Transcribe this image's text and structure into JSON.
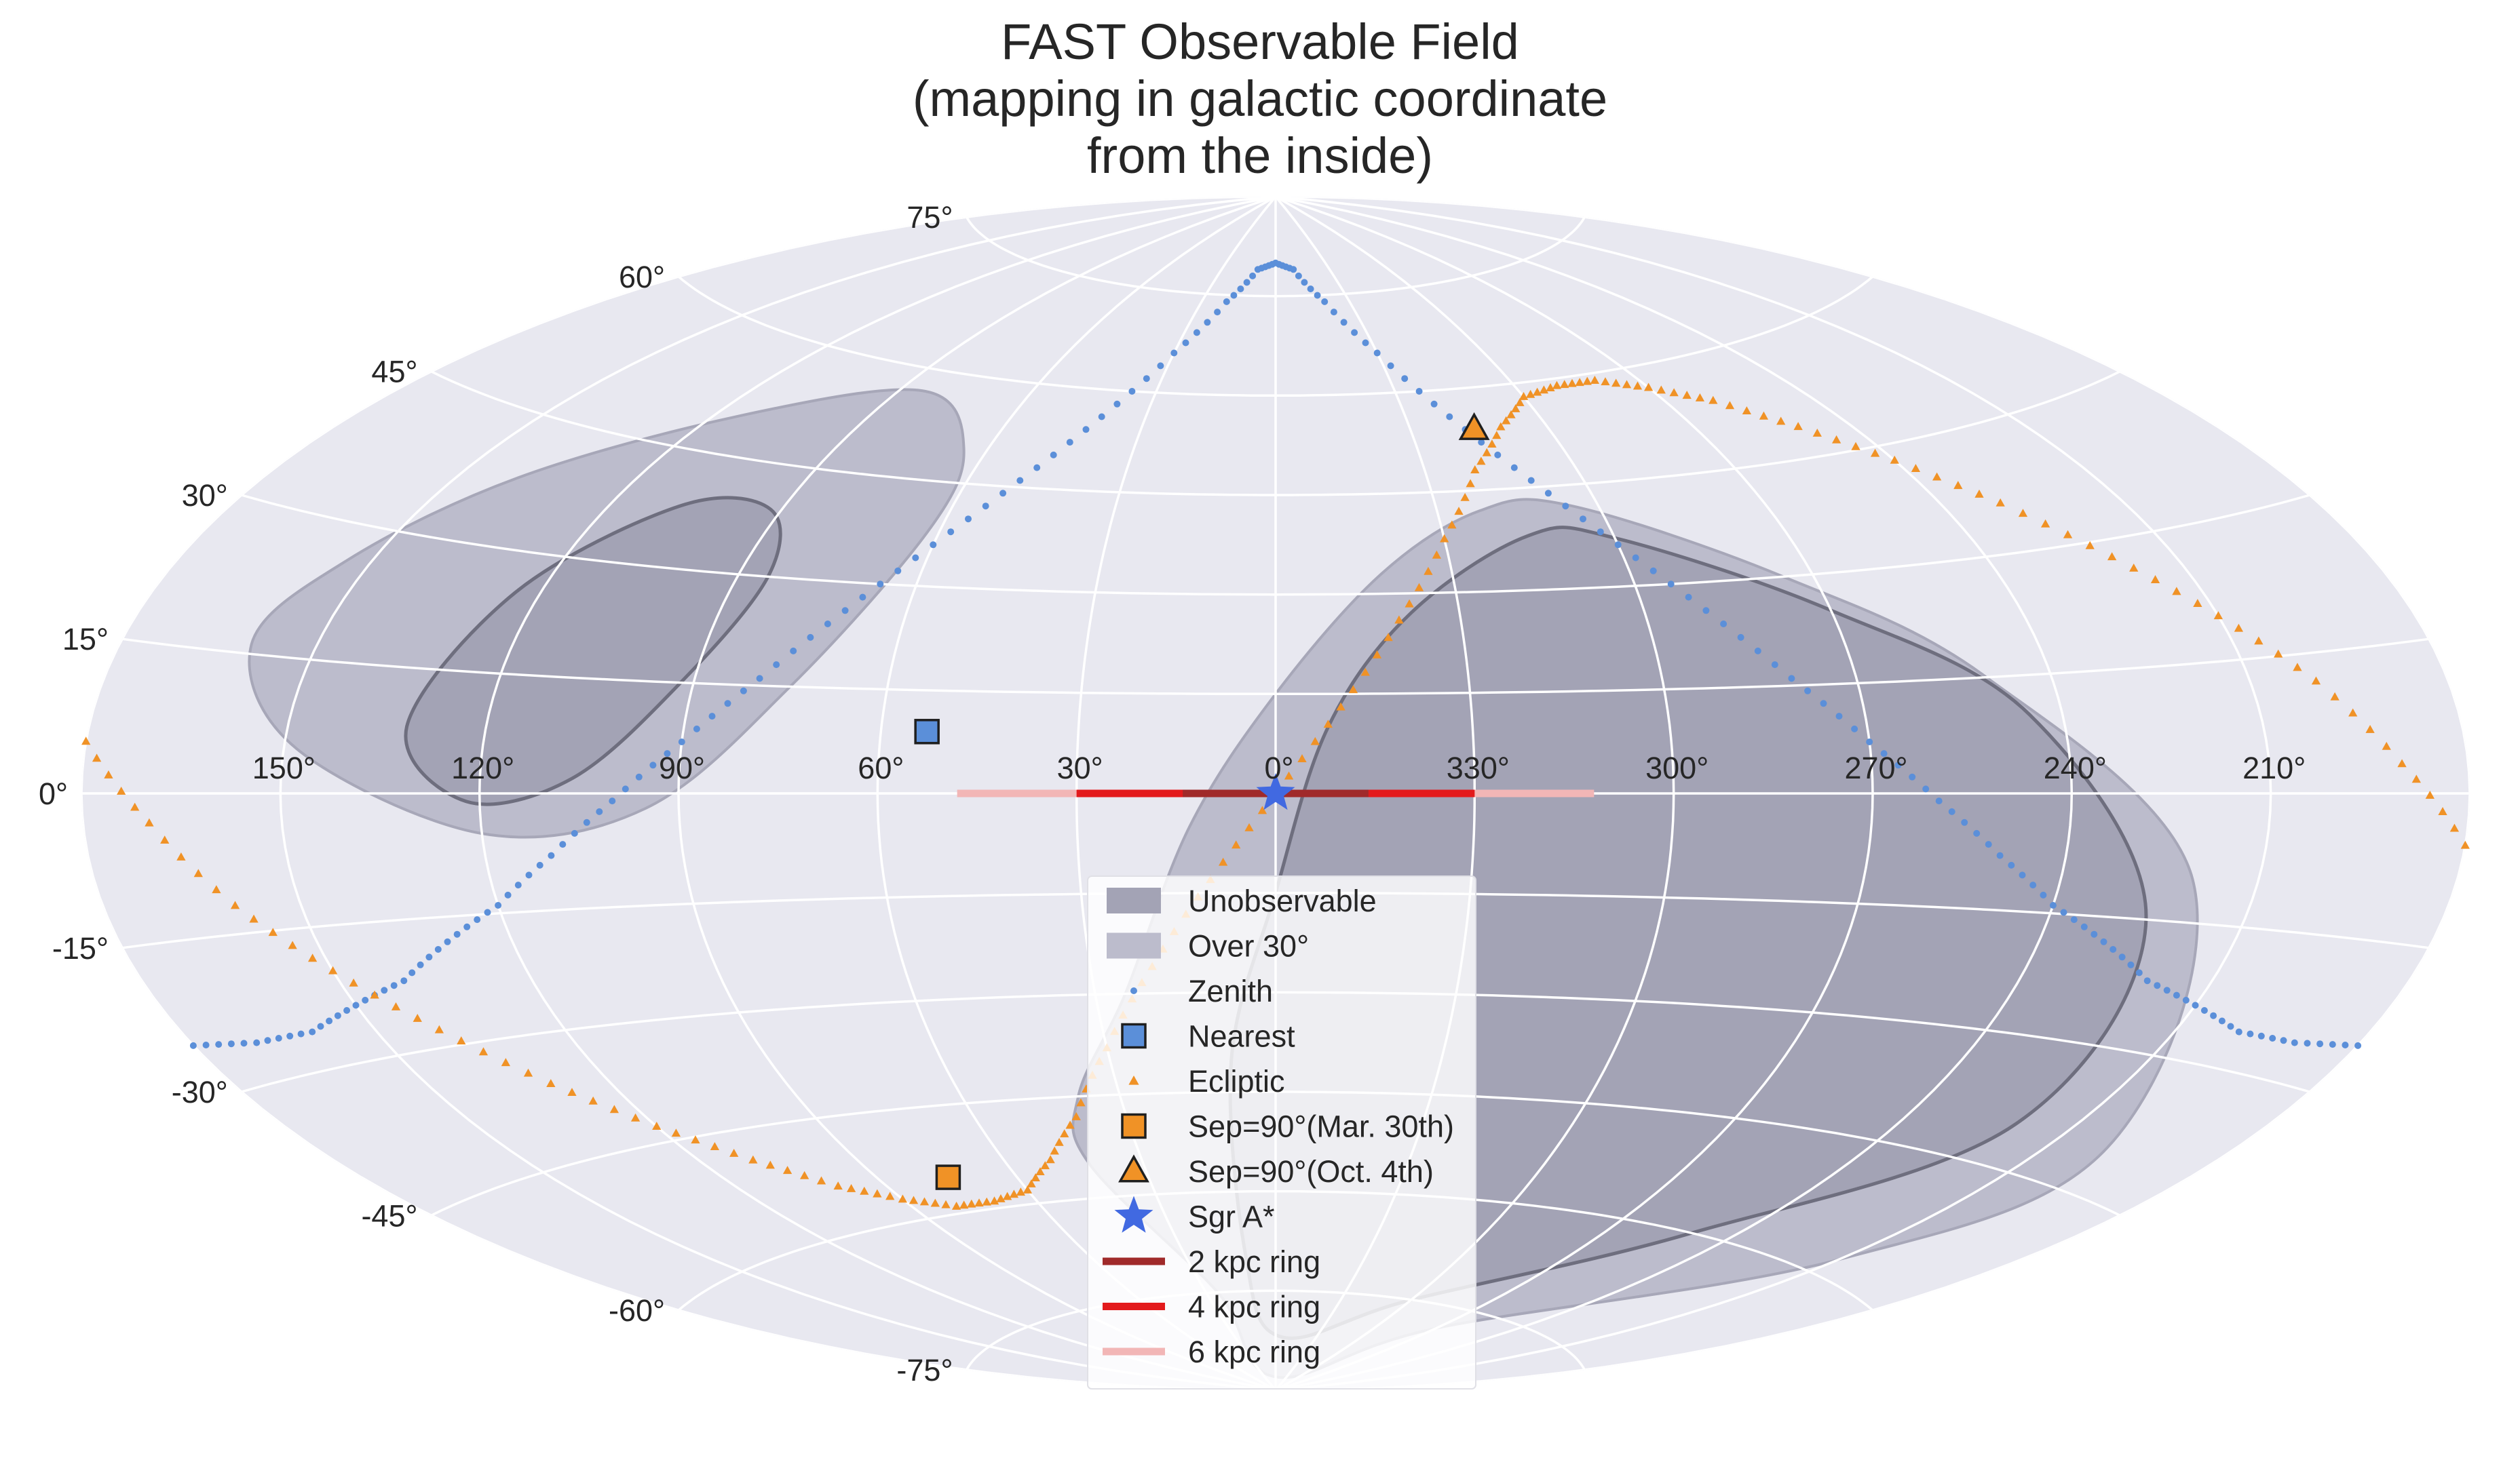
{
  "chart_data": {
    "type": "scatter",
    "projection": "aitoff",
    "title": [
      "FAST Observable Field",
      "(mapping in galactic coordinate",
      "from the inside)"
    ],
    "xlabel": "",
    "ylabel": "",
    "longitude_ticks": [
      {
        "value": 150,
        "label": "150°"
      },
      {
        "value": 120,
        "label": "120°"
      },
      {
        "value": 90,
        "label": "90°"
      },
      {
        "value": 60,
        "label": "60°"
      },
      {
        "value": 30,
        "label": "30°"
      },
      {
        "value": 0,
        "label": "0°"
      },
      {
        "value": -30,
        "label": "330°"
      },
      {
        "value": -60,
        "label": "300°"
      },
      {
        "value": -90,
        "label": "270°"
      },
      {
        "value": -120,
        "label": "240°"
      },
      {
        "value": -150,
        "label": "210°"
      }
    ],
    "latitude_ticks": [
      {
        "value": 75,
        "label": "75°"
      },
      {
        "value": 60,
        "label": "60°"
      },
      {
        "value": 45,
        "label": "45°"
      },
      {
        "value": 30,
        "label": "30°"
      },
      {
        "value": 15,
        "label": "15°"
      },
      {
        "value": 0,
        "label": "0°"
      },
      {
        "value": -15,
        "label": "-15°"
      },
      {
        "value": -30,
        "label": "-30°"
      },
      {
        "value": -45,
        "label": "-45°"
      },
      {
        "value": -60,
        "label": "-60°"
      },
      {
        "value": -75,
        "label": "-75°"
      }
    ],
    "regions": [
      {
        "name": "Over 30°",
        "color": "#bcbccc",
        "boundary": [
          [
            154,
            26
          ],
          [
            160,
            16
          ],
          [
            148,
            5
          ],
          [
            120,
            -5
          ],
          [
            95,
            -2
          ],
          [
            75,
            15
          ],
          [
            62,
            38
          ],
          [
            65,
            50
          ],
          [
            85,
            57
          ],
          [
            115,
            50
          ],
          [
            140,
            38
          ]
        ]
      },
      {
        "name": "Unobservable",
        "color": "#a3a3b5",
        "boundary": [
          [
            132,
            8
          ],
          [
            122,
            -1
          ],
          [
            106,
            2
          ],
          [
            92,
            15
          ],
          [
            85,
            30
          ],
          [
            92,
            39
          ],
          [
            108,
            38
          ],
          [
            124,
            25
          ]
        ]
      },
      {
        "name": "Over 30°",
        "color": "#bcbccc",
        "boundary": [
          [
            -55,
            42
          ],
          [
            -85,
            30
          ],
          [
            -110,
            15
          ],
          [
            -140,
            -10
          ],
          [
            -160,
            -40
          ],
          [
            -150,
            -58
          ],
          [
            -90,
            -78
          ],
          [
            0,
            -88
          ],
          [
            25,
            -75
          ],
          [
            42,
            -55
          ],
          [
            38,
            -45
          ],
          [
            25,
            -30
          ],
          [
            13,
            -5
          ],
          [
            0,
            15
          ],
          [
            -18,
            33
          ],
          [
            -38,
            42
          ]
        ]
      },
      {
        "name": "Unobservable",
        "color": "#a3a3b5",
        "boundary": [
          [
            -60,
            37
          ],
          [
            -90,
            25
          ],
          [
            -115,
            10
          ],
          [
            -135,
            -15
          ],
          [
            -140,
            -40
          ],
          [
            -110,
            -60
          ],
          [
            -60,
            -75
          ],
          [
            -5,
            -82
          ],
          [
            10,
            -70
          ],
          [
            8,
            -40
          ],
          [
            0,
            -15
          ],
          [
            -8,
            10
          ],
          [
            -22,
            27
          ],
          [
            -45,
            38
          ]
        ]
      }
    ],
    "series": [
      {
        "name": "Zenith",
        "marker": "dot",
        "color": "#5b8fd9",
        "points": [
          [
            -180,
            -25
          ],
          [
            -170,
            -26
          ],
          [
            -160,
            -26
          ],
          [
            -150,
            -24
          ],
          [
            -140,
            -22
          ],
          [
            -130,
            -18
          ],
          [
            -120,
            -14
          ],
          [
            -110,
            -8
          ],
          [
            -100,
            -1
          ],
          [
            -90,
            7
          ],
          [
            -80,
            16
          ],
          [
            -70,
            26
          ],
          [
            -60,
            36
          ],
          [
            -50,
            46
          ],
          [
            -40,
            56
          ],
          [
            -30,
            66
          ],
          [
            -20,
            74
          ],
          [
            -10,
            79
          ],
          [
            0,
            80
          ],
          [
            10,
            79
          ],
          [
            20,
            74
          ],
          [
            30,
            66
          ],
          [
            40,
            56
          ],
          [
            50,
            46
          ],
          [
            60,
            36
          ],
          [
            70,
            26
          ],
          [
            80,
            16
          ],
          [
            90,
            7
          ],
          [
            100,
            -1
          ],
          [
            110,
            -8
          ],
          [
            120,
            -14
          ],
          [
            130,
            -18
          ],
          [
            140,
            -22
          ],
          [
            150,
            -24
          ],
          [
            160,
            -26
          ],
          [
            170,
            -26
          ],
          [
            180,
            -25
          ]
        ]
      },
      {
        "name": "Ecliptic",
        "marker": "triangle",
        "color": "#f09226",
        "points": [
          [
            -180,
            -5
          ],
          [
            -170,
            3
          ],
          [
            -160,
            12
          ],
          [
            -150,
            20
          ],
          [
            -140,
            28
          ],
          [
            -130,
            36
          ],
          [
            -120,
            43
          ],
          [
            -110,
            49
          ],
          [
            -100,
            54
          ],
          [
            -90,
            57
          ],
          [
            -80,
            59
          ],
          [
            -70,
            59
          ],
          [
            -60,
            58
          ],
          [
            -50,
            54
          ],
          [
            -40,
            48
          ],
          [
            -30,
            38
          ],
          [
            -20,
            26
          ],
          [
            -10,
            13
          ],
          [
            0,
            0
          ],
          [
            10,
            -13
          ],
          [
            20,
            -26
          ],
          [
            30,
            -38
          ],
          [
            40,
            -48
          ],
          [
            50,
            -54
          ],
          [
            60,
            -58
          ],
          [
            70,
            -59
          ],
          [
            80,
            -59
          ],
          [
            90,
            -57
          ],
          [
            100,
            -54
          ],
          [
            110,
            -49
          ],
          [
            120,
            -43
          ],
          [
            130,
            -36
          ],
          [
            140,
            -28
          ],
          [
            150,
            -20
          ],
          [
            160,
            -12
          ],
          [
            170,
            -3
          ],
          [
            180,
            5
          ]
        ]
      },
      {
        "name": "Nearest",
        "marker": "square",
        "color": "#5b8fd9",
        "points": [
          [
            53,
            9
          ]
        ]
      },
      {
        "name": "Sep=90°(Mar. 30th)",
        "marker": "square",
        "color": "#f09226",
        "points": [
          [
            75,
            -55
          ]
        ]
      },
      {
        "name": "Sep=90°(Oct. 4th)",
        "marker": "triangle",
        "color": "#f09226",
        "points": [
          [
            -44,
            54
          ]
        ]
      },
      {
        "name": "Sgr A*",
        "marker": "star",
        "color": "#4169e1",
        "points": [
          [
            0,
            0
          ]
        ]
      }
    ],
    "rings": [
      {
        "name": "2 kpc ring",
        "color": "#a02a2a",
        "lon_range": [
          -14,
          14
        ]
      },
      {
        "name": "4 kpc ring",
        "color": "#e31a1c",
        "lon_range": [
          -30,
          30
        ]
      },
      {
        "name": "6 kpc ring",
        "color": "#f2b6b6",
        "lon_range": [
          -48,
          48
        ]
      }
    ],
    "legend": {
      "placement": "lower-center",
      "entries": [
        {
          "label": "Unobservable",
          "kind": "patch",
          "color": "#a3a3b5"
        },
        {
          "label": "Over 30°",
          "kind": "patch",
          "color": "#bcbccc"
        },
        {
          "label": "Zenith",
          "kind": "dot",
          "color": "#5b8fd9"
        },
        {
          "label": "Nearest",
          "kind": "square",
          "color": "#5b8fd9"
        },
        {
          "label": "Ecliptic",
          "kind": "small-triangle",
          "color": "#f09226"
        },
        {
          "label": "Sep=90°(Mar. 30th)",
          "kind": "square",
          "color": "#f09226"
        },
        {
          "label": "Sep=90°(Oct. 4th)",
          "kind": "triangle",
          "color": "#f09226"
        },
        {
          "label": "Sgr A*",
          "kind": "star",
          "color": "#4169e1"
        },
        {
          "label": "2 kpc ring",
          "kind": "line",
          "color": "#a02a2a"
        },
        {
          "label": "4 kpc ring",
          "kind": "line",
          "color": "#e31a1c"
        },
        {
          "label": "6 kpc ring",
          "kind": "line",
          "color": "#f2b6b6"
        }
      ]
    },
    "background_color": "#e8e8f0",
    "grid": true
  }
}
